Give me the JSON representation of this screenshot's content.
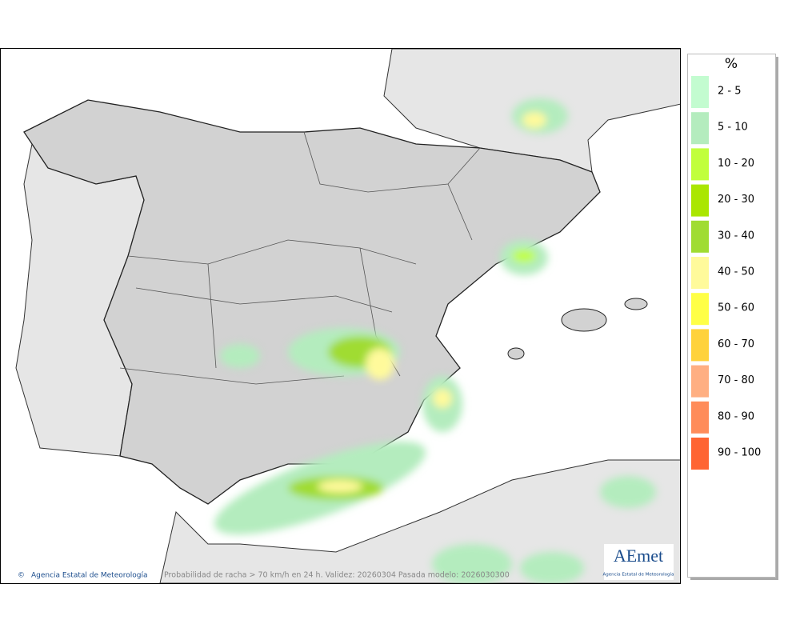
{
  "legend": {
    "title": "%",
    "items": [
      {
        "label": "2 - 5",
        "color": "#c3fcd0"
      },
      {
        "label": "5 - 10",
        "color": "#b4ecbe"
      },
      {
        "label": "10 - 20",
        "color": "#c1ff3c"
      },
      {
        "label": "20 - 30",
        "color": "#aae600"
      },
      {
        "label": "30 - 40",
        "color": "#a0dc32"
      },
      {
        "label": "40 - 50",
        "color": "#fffa9b"
      },
      {
        "label": "50 - 60",
        "color": "#ffff46"
      },
      {
        "label": "60 - 70",
        "color": "#ffd23c"
      },
      {
        "label": "70 - 80",
        "color": "#ffaf82"
      },
      {
        "label": "80 - 90",
        "color": "#ff8c5a"
      },
      {
        "label": "90 - 100",
        "color": "#ff6432"
      }
    ]
  },
  "footer": {
    "copyright": "Agencia Estatal de Meteorología",
    "caption": "Probabilidad de racha > 70 km/h en 24 h. Validez: 20260304 Pasada modelo: 2026030300"
  },
  "logo": {
    "name": "AEmet",
    "subtitle": "Agencia Estatal de Meteorología"
  }
}
